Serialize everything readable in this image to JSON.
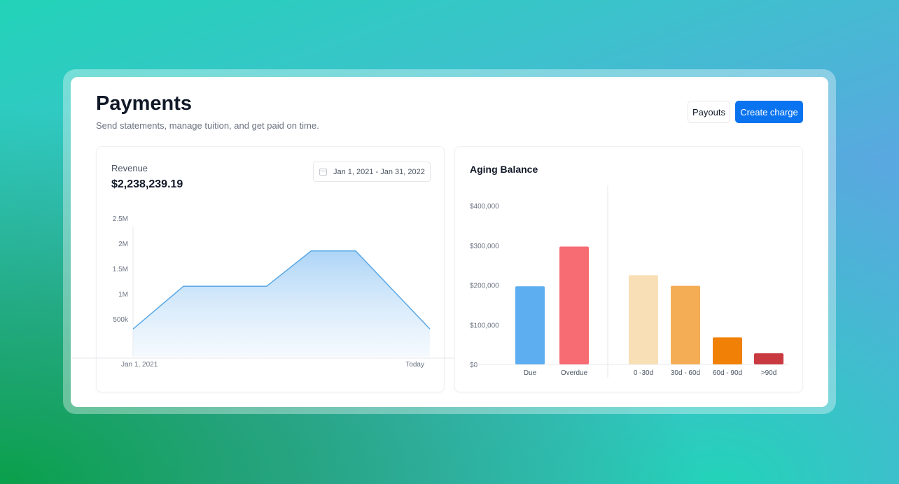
{
  "header": {
    "title": "Payments",
    "subtitle": "Send statements, manage tuition, and get paid on time.",
    "payouts_label": "Payouts",
    "create_charge_label": "Create charge"
  },
  "revenue": {
    "label": "Revenue",
    "value": "$2,238,239.19",
    "date_range": "Jan 1, 2021 - Jan 31, 2022"
  },
  "aging": {
    "title": "Aging Balance"
  },
  "chart_data": [
    {
      "type": "area",
      "title": "Revenue",
      "y_ticks": [
        "2.5M",
        "2M",
        "1.5M",
        "1M",
        "500k"
      ],
      "y_tick_values": [
        2500000,
        2000000,
        1500000,
        1000000,
        500000
      ],
      "x_tick_labels": [
        "Jan 1, 2021",
        "Today"
      ],
      "x": [
        0,
        0.17,
        0.45,
        0.6,
        0.75,
        1.0
      ],
      "values": [
        300000,
        1150000,
        1150000,
        1850000,
        1850000,
        300000
      ],
      "ylim": [
        0,
        2500000
      ],
      "color": "#5aa8e6",
      "grid": false
    },
    {
      "type": "bar",
      "title": "Aging Balance",
      "y_ticks": [
        "$400,000",
        "$300,000",
        "$200,000",
        "$100,000",
        "$0"
      ],
      "y_tick_values": [
        400000,
        300000,
        200000,
        100000,
        0
      ],
      "ylim": [
        0,
        400000
      ],
      "categories": [
        "Due",
        "Overdue",
        "0 -30d",
        "30d - 60d",
        "60d - 90d",
        ">90d"
      ],
      "values": [
        197000,
        297000,
        225000,
        198000,
        68000,
        28000
      ],
      "colors": [
        "#5daef0",
        "#f76b73",
        "#f9dfb5",
        "#f5ad55",
        "#f08106",
        "#c93a40"
      ],
      "grid": false
    }
  ]
}
